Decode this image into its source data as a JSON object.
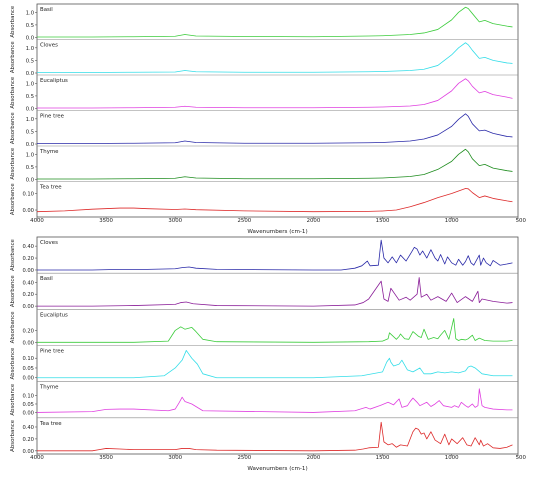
{
  "chart_data": [
    {
      "type": "line",
      "xlabel": "Wavenumbers (cm-1)",
      "ylabel": "Absorbance",
      "xlim": [
        4000,
        520
      ],
      "x_ticks": [
        4000,
        3500,
        3000,
        2500,
        2000,
        1500,
        1000,
        500
      ],
      "grid": false,
      "series": [
        {
          "name": "Basil",
          "color": "#3ccc3c",
          "ylim": [
            0,
            1.25
          ],
          "yticks": [
            0.0,
            0.5,
            1.0
          ],
          "x": [
            4000,
            3600,
            3300,
            3000,
            2930,
            2850,
            2500,
            2000,
            1600,
            1500,
            1300,
            1200,
            1100,
            1000,
            950,
            900,
            880,
            850,
            800,
            760,
            700,
            600,
            560
          ],
          "y": [
            0.02,
            0.02,
            0.03,
            0.05,
            0.12,
            0.06,
            0.04,
            0.03,
            0.06,
            0.07,
            0.12,
            0.18,
            0.32,
            0.7,
            1.0,
            1.2,
            1.15,
            0.95,
            0.62,
            0.68,
            0.55,
            0.45,
            0.42
          ]
        },
        {
          "name": "Cloves",
          "color": "#33dde8",
          "ylim": [
            0,
            1.25
          ],
          "yticks": [
            0.0,
            0.5,
            1.0
          ],
          "x": [
            4000,
            3600,
            3300,
            3000,
            2930,
            2850,
            2500,
            2000,
            1600,
            1500,
            1300,
            1200,
            1100,
            1000,
            950,
            900,
            880,
            850,
            800,
            760,
            700,
            600,
            560
          ],
          "y": [
            0.02,
            0.02,
            0.03,
            0.04,
            0.1,
            0.05,
            0.03,
            0.03,
            0.05,
            0.06,
            0.1,
            0.15,
            0.3,
            0.72,
            1.0,
            1.2,
            1.12,
            0.9,
            0.58,
            0.62,
            0.5,
            0.4,
            0.38
          ]
        },
        {
          "name": "Eucaliptus",
          "color": "#e040e0",
          "ylim": [
            0,
            1.25
          ],
          "yticks": [
            0.0,
            0.5,
            1.0
          ],
          "x": [
            4000,
            3600,
            3300,
            3000,
            2930,
            2850,
            2500,
            2000,
            1600,
            1500,
            1300,
            1200,
            1100,
            1000,
            950,
            900,
            880,
            850,
            800,
            760,
            700,
            600,
            560
          ],
          "y": [
            0.02,
            0.02,
            0.03,
            0.05,
            0.09,
            0.05,
            0.03,
            0.03,
            0.05,
            0.06,
            0.1,
            0.16,
            0.32,
            0.7,
            1.0,
            1.18,
            1.1,
            0.88,
            0.62,
            0.68,
            0.55,
            0.45,
            0.4
          ]
        },
        {
          "name": "Pine tree",
          "color": "#2a2aa8",
          "ylim": [
            0,
            1.25
          ],
          "yticks": [
            0.0,
            0.5,
            1.0
          ],
          "x": [
            4000,
            3600,
            3300,
            3000,
            2930,
            2850,
            2500,
            2000,
            1600,
            1500,
            1300,
            1200,
            1100,
            1000,
            950,
            900,
            880,
            850,
            800,
            760,
            700,
            600,
            560
          ],
          "y": [
            0.02,
            0.02,
            0.03,
            0.05,
            0.12,
            0.06,
            0.03,
            0.03,
            0.05,
            0.06,
            0.12,
            0.2,
            0.36,
            0.7,
            0.98,
            1.2,
            1.1,
            0.8,
            0.52,
            0.55,
            0.42,
            0.3,
            0.28
          ]
        },
        {
          "name": "Thyme",
          "color": "#1e8c1e",
          "ylim": [
            0,
            1.25
          ],
          "yticks": [
            0.0,
            0.5,
            1.0
          ],
          "x": [
            4000,
            3600,
            3300,
            3000,
            2930,
            2850,
            2500,
            2000,
            1600,
            1500,
            1300,
            1200,
            1100,
            1000,
            950,
            900,
            880,
            850,
            800,
            760,
            700,
            600,
            560
          ],
          "y": [
            0.02,
            0.02,
            0.03,
            0.05,
            0.11,
            0.06,
            0.03,
            0.03,
            0.05,
            0.06,
            0.12,
            0.2,
            0.4,
            0.72,
            1.0,
            1.2,
            1.1,
            0.82,
            0.55,
            0.6,
            0.45,
            0.35,
            0.32
          ]
        },
        {
          "name": "Tea tree",
          "color": "#dd2a2a",
          "ylim": [
            -0.03,
            0.16
          ],
          "yticks": [
            0.0,
            0.1
          ],
          "x": [
            4000,
            3800,
            3600,
            3400,
            3300,
            3200,
            3000,
            2930,
            2850,
            2500,
            2000,
            1600,
            1500,
            1400,
            1300,
            1200,
            1100,
            1000,
            950,
            900,
            880,
            850,
            800,
            760,
            700,
            600,
            560
          ],
          "y": [
            -0.01,
            -0.005,
            0.005,
            0.012,
            0.012,
            0.008,
            0.003,
            0.006,
            0.002,
            -0.005,
            -0.01,
            -0.008,
            -0.006,
            0.0,
            0.02,
            0.045,
            0.075,
            0.1,
            0.115,
            0.13,
            0.128,
            0.105,
            0.075,
            0.085,
            0.07,
            0.055,
            0.05
          ]
        }
      ]
    },
    {
      "type": "line",
      "xlabel": "Wavenumbers (cm-1)",
      "ylabel": "Absorbance",
      "xlim": [
        4000,
        520
      ],
      "x_ticks": [
        4000,
        3500,
        3000,
        2500,
        2000,
        1500,
        1000,
        500
      ],
      "grid": false,
      "series": [
        {
          "name": "Cloves",
          "color": "#2a2aa8",
          "ylim": [
            -0.02,
            0.52
          ],
          "yticks": [
            0.0,
            0.2,
            0.4
          ],
          "x": [
            4000,
            3600,
            3400,
            3200,
            3000,
            2950,
            2900,
            2850,
            2700,
            2000,
            1800,
            1700,
            1650,
            1610,
            1590,
            1530,
            1510,
            1490,
            1460,
            1430,
            1400,
            1370,
            1330,
            1290,
            1270,
            1250,
            1230,
            1210,
            1180,
            1150,
            1120,
            1100,
            1080,
            1050,
            1030,
            1000,
            970,
            950,
            920,
            900,
            880,
            860,
            840,
            800,
            790,
            770,
            750,
            720,
            700,
            650,
            600,
            560
          ],
          "y": [
            0.0,
            0.0,
            0.01,
            0.01,
            0.02,
            0.04,
            0.05,
            0.03,
            0.01,
            0.0,
            0.0,
            0.03,
            0.07,
            0.15,
            0.07,
            0.08,
            0.5,
            0.2,
            0.12,
            0.22,
            0.12,
            0.25,
            0.15,
            0.3,
            0.38,
            0.35,
            0.25,
            0.32,
            0.2,
            0.34,
            0.2,
            0.15,
            0.26,
            0.1,
            0.22,
            0.12,
            0.08,
            0.18,
            0.08,
            0.14,
            0.24,
            0.12,
            0.08,
            0.25,
            0.08,
            0.2,
            0.12,
            0.07,
            0.16,
            0.08,
            0.1,
            0.12
          ]
        },
        {
          "name": "Basil",
          "color": "#8a1e98",
          "ylim": [
            -0.02,
            0.52
          ],
          "yticks": [
            0.0,
            0.2,
            0.4
          ],
          "x": [
            4000,
            3600,
            3300,
            3000,
            2960,
            2920,
            2870,
            2700,
            2000,
            1700,
            1640,
            1600,
            1510,
            1490,
            1460,
            1440,
            1380,
            1330,
            1300,
            1250,
            1235,
            1220,
            1180,
            1150,
            1100,
            1040,
            1000,
            960,
            900,
            850,
            810,
            800,
            780,
            700,
            600,
            560
          ],
          "y": [
            0.0,
            0.0,
            0.01,
            0.03,
            0.06,
            0.07,
            0.04,
            0.01,
            0.0,
            0.02,
            0.06,
            0.12,
            0.42,
            0.12,
            0.08,
            0.3,
            0.1,
            0.15,
            0.1,
            0.2,
            0.48,
            0.15,
            0.2,
            0.1,
            0.16,
            0.08,
            0.22,
            0.06,
            0.16,
            0.08,
            0.25,
            0.06,
            0.12,
            0.08,
            0.05,
            0.06
          ]
        },
        {
          "name": "Eucaliptus",
          "color": "#3ccc3c",
          "ylim": [
            -0.02,
            0.52
          ],
          "yticks": [
            0.0,
            0.2
          ],
          "x": [
            4000,
            3600,
            3300,
            3050,
            3000,
            2960,
            2930,
            2880,
            2850,
            2800,
            2700,
            2000,
            1600,
            1500,
            1460,
            1450,
            1400,
            1380,
            1370,
            1340,
            1310,
            1280,
            1240,
            1220,
            1200,
            1170,
            1130,
            1100,
            1080,
            1050,
            1020,
            985,
            970,
            950,
            930,
            900,
            880,
            850,
            830,
            800,
            760,
            700,
            600,
            560
          ],
          "y": [
            0.0,
            0.0,
            0.0,
            0.02,
            0.2,
            0.26,
            0.22,
            0.25,
            0.18,
            0.05,
            0.01,
            0.0,
            0.01,
            0.02,
            0.06,
            0.16,
            0.05,
            0.1,
            0.14,
            0.06,
            0.05,
            0.18,
            0.1,
            0.08,
            0.22,
            0.05,
            0.08,
            0.06,
            0.12,
            0.2,
            0.05,
            0.4,
            0.06,
            0.03,
            0.05,
            0.04,
            0.06,
            0.12,
            0.03,
            0.07,
            0.03,
            0.02,
            0.02,
            0.03
          ]
        },
        {
          "name": "Pine tree",
          "color": "#33dde8",
          "ylim": [
            -0.01,
            0.155
          ],
          "yticks": [
            0.0,
            0.05,
            0.1
          ],
          "x": [
            4000,
            3600,
            3300,
            3080,
            3000,
            2950,
            2920,
            2880,
            2840,
            2800,
            2700,
            2000,
            1650,
            1500,
            1470,
            1450,
            1440,
            1420,
            1380,
            1360,
            1320,
            1280,
            1230,
            1200,
            1150,
            1100,
            1050,
            1000,
            950,
            900,
            880,
            860,
            830,
            780,
            700,
            600,
            560
          ],
          "y": [
            0.0,
            0.0,
            0.0,
            0.01,
            0.05,
            0.09,
            0.14,
            0.1,
            0.07,
            0.02,
            0.0,
            0.0,
            0.01,
            0.03,
            0.08,
            0.1,
            0.08,
            0.06,
            0.07,
            0.09,
            0.04,
            0.03,
            0.05,
            0.02,
            0.02,
            0.03,
            0.025,
            0.03,
            0.025,
            0.035,
            0.055,
            0.06,
            0.05,
            0.02,
            0.01,
            0.01,
            0.01
          ]
        },
        {
          "name": "Thyme",
          "color": "#e040e0",
          "ylim": [
            -0.02,
            0.17
          ],
          "yticks": [
            0.0,
            0.05,
            0.1
          ],
          "x": [
            4000,
            3600,
            3500,
            3400,
            3300,
            3050,
            3000,
            2970,
            2950,
            2930,
            2880,
            2800,
            2000,
            1700,
            1620,
            1590,
            1520,
            1460,
            1420,
            1380,
            1360,
            1320,
            1300,
            1280,
            1250,
            1230,
            1180,
            1150,
            1120,
            1090,
            1060,
            1000,
            980,
            950,
            930,
            900,
            880,
            850,
            830,
            810,
            800,
            780,
            760,
            700,
            600,
            560
          ],
          "y": [
            0.0,
            0.005,
            0.018,
            0.02,
            0.02,
            0.01,
            0.02,
            0.06,
            0.09,
            0.065,
            0.05,
            0.01,
            0.0,
            0.01,
            0.03,
            0.02,
            0.04,
            0.06,
            0.045,
            0.08,
            0.03,
            0.04,
            0.065,
            0.085,
            0.06,
            0.04,
            0.06,
            0.035,
            0.05,
            0.07,
            0.04,
            0.03,
            0.04,
            0.03,
            0.06,
            0.04,
            0.03,
            0.05,
            0.03,
            0.04,
            0.14,
            0.04,
            0.03,
            0.02,
            0.015,
            0.015
          ]
        },
        {
          "name": "Tea tree",
          "color": "#dd2a2a",
          "ylim": [
            -0.02,
            0.52
          ],
          "yticks": [
            0.0,
            0.2,
            0.4
          ],
          "x": [
            4000,
            3600,
            3550,
            3500,
            3400,
            3300,
            3000,
            2950,
            2900,
            2850,
            2700,
            2000,
            1700,
            1640,
            1600,
            1530,
            1510,
            1490,
            1460,
            1430,
            1400,
            1370,
            1320,
            1280,
            1260,
            1240,
            1220,
            1200,
            1180,
            1150,
            1120,
            1080,
            1050,
            1020,
            1000,
            960,
            920,
            890,
            860,
            830,
            800,
            790,
            770,
            740,
            700,
            650,
            600,
            560
          ],
          "y": [
            0.0,
            0.0,
            0.02,
            0.04,
            0.03,
            0.02,
            0.02,
            0.04,
            0.04,
            0.02,
            0.01,
            0.0,
            0.01,
            0.03,
            0.05,
            0.06,
            0.48,
            0.15,
            0.1,
            0.12,
            0.06,
            0.1,
            0.08,
            0.32,
            0.38,
            0.36,
            0.28,
            0.3,
            0.2,
            0.32,
            0.18,
            0.12,
            0.28,
            0.1,
            0.2,
            0.12,
            0.22,
            0.1,
            0.08,
            0.22,
            0.1,
            0.18,
            0.08,
            0.12,
            0.05,
            0.04,
            0.06,
            0.1
          ]
        }
      ]
    }
  ]
}
